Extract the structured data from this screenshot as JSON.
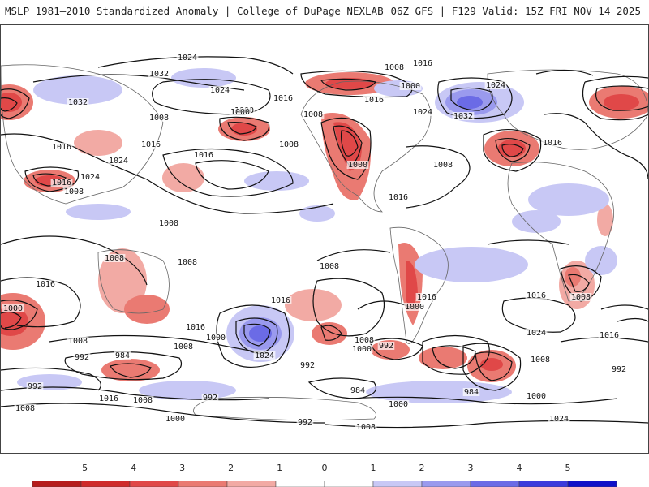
{
  "header": {
    "title": "MSLP 1981–2010 Standardized Anomaly | College of DuPage NEXLAB",
    "run_info": "06Z GFS | F129 Valid: 15Z FRI NOV 14 2025"
  },
  "legend": {
    "ticks": [
      "−5",
      "−4",
      "−3",
      "−2",
      "−1",
      "0",
      "1",
      "2",
      "3",
      "4",
      "5"
    ],
    "colors": [
      "#b51c1c",
      "#cf2b2b",
      "#e04848",
      "#ea7a72",
      "#f2aaa4",
      "#ffffff",
      "#ffffff",
      "#c8c8f5",
      "#9a9aee",
      "#6b6be6",
      "#3b3bdc",
      "#1010c8"
    ]
  },
  "isobar_labels": [
    "1024",
    "1008",
    "1016",
    "1032",
    "1024",
    "1016",
    "1000",
    "1024",
    "1000",
    "1032",
    "1016",
    "1008",
    "1016",
    "1024",
    "1016",
    "1008",
    "1016",
    "1000",
    "1008",
    "1032",
    "1024",
    "1016",
    "1000",
    "1008",
    "1016",
    "1024",
    "1016",
    "1008",
    "1008",
    "1008",
    "1008",
    "1016",
    "1008",
    "1016",
    "1016",
    "1000",
    "1000",
    "1008",
    "1016",
    "1024",
    "1016",
    "1008",
    "992",
    "984",
    "1000",
    "1024",
    "992",
    "1008",
    "1000",
    "992",
    "1008",
    "984",
    "1000",
    "992",
    "1016",
    "1008",
    "992",
    "984",
    "1000",
    "992",
    "1008",
    "1000",
    "1008",
    "992",
    "1016",
    "1008",
    "1024"
  ]
}
